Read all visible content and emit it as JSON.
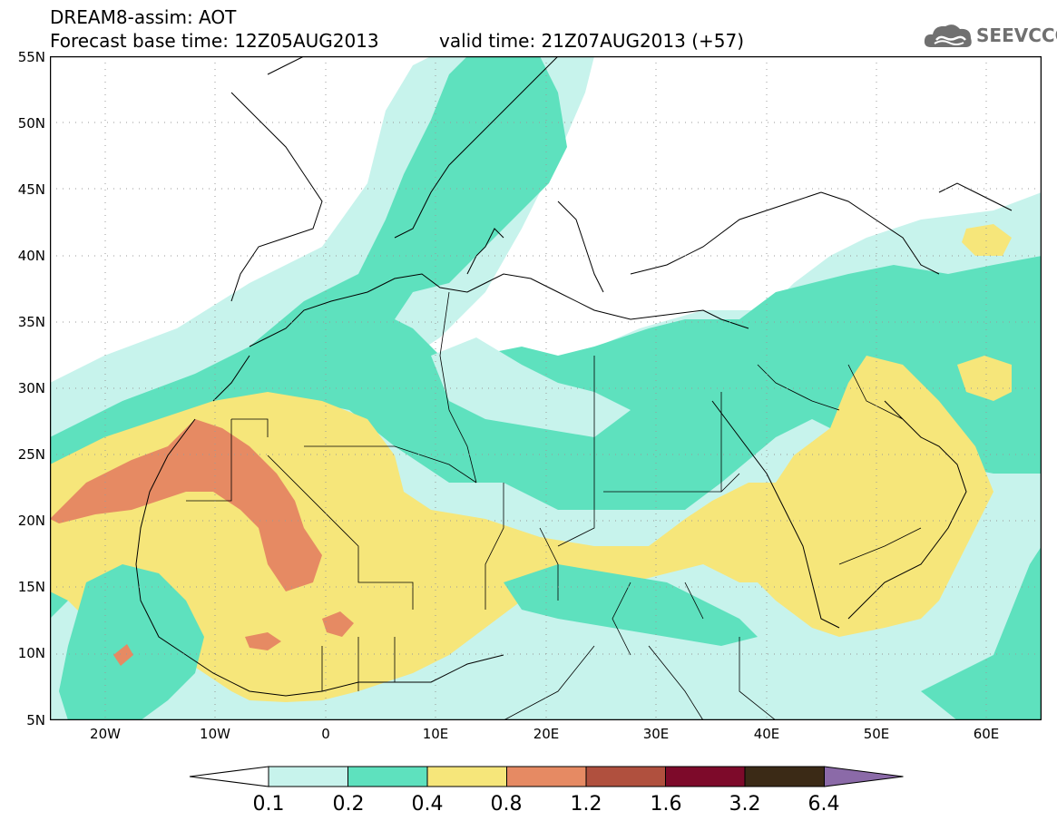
{
  "title": {
    "line1": "DREAM8-assim: AOT",
    "base": "Forecast base time: 12Z05AUG2013",
    "valid": "valid time: 21Z07AUG2013 (+57)"
  },
  "logo": {
    "text": "SEEVCCC",
    "icon": "cloud-icon",
    "color": "#707070"
  },
  "axes": {
    "lat_labels": [
      "55N",
      "50N",
      "45N",
      "40N",
      "35N",
      "30N",
      "25N",
      "20N",
      "15N",
      "10N",
      "5N"
    ],
    "lon_labels": [
      "20W",
      "10W",
      "0",
      "10E",
      "20E",
      "30E",
      "40E",
      "50E",
      "60E"
    ],
    "lat_range": [
      5,
      55
    ],
    "lon_range": [
      -25,
      65
    ]
  },
  "colorbar": {
    "levels": [
      "0.1",
      "0.2",
      "0.4",
      "0.8",
      "1.2",
      "1.6",
      "3.2",
      "6.4"
    ],
    "colors": [
      "#c7f3ec",
      "#5ee1be",
      "#f6e67a",
      "#e68a63",
      "#b0503e",
      "#7d0a2a",
      "#3b2a16",
      "#8b6aa8"
    ],
    "under_color": "#ffffff"
  }
}
